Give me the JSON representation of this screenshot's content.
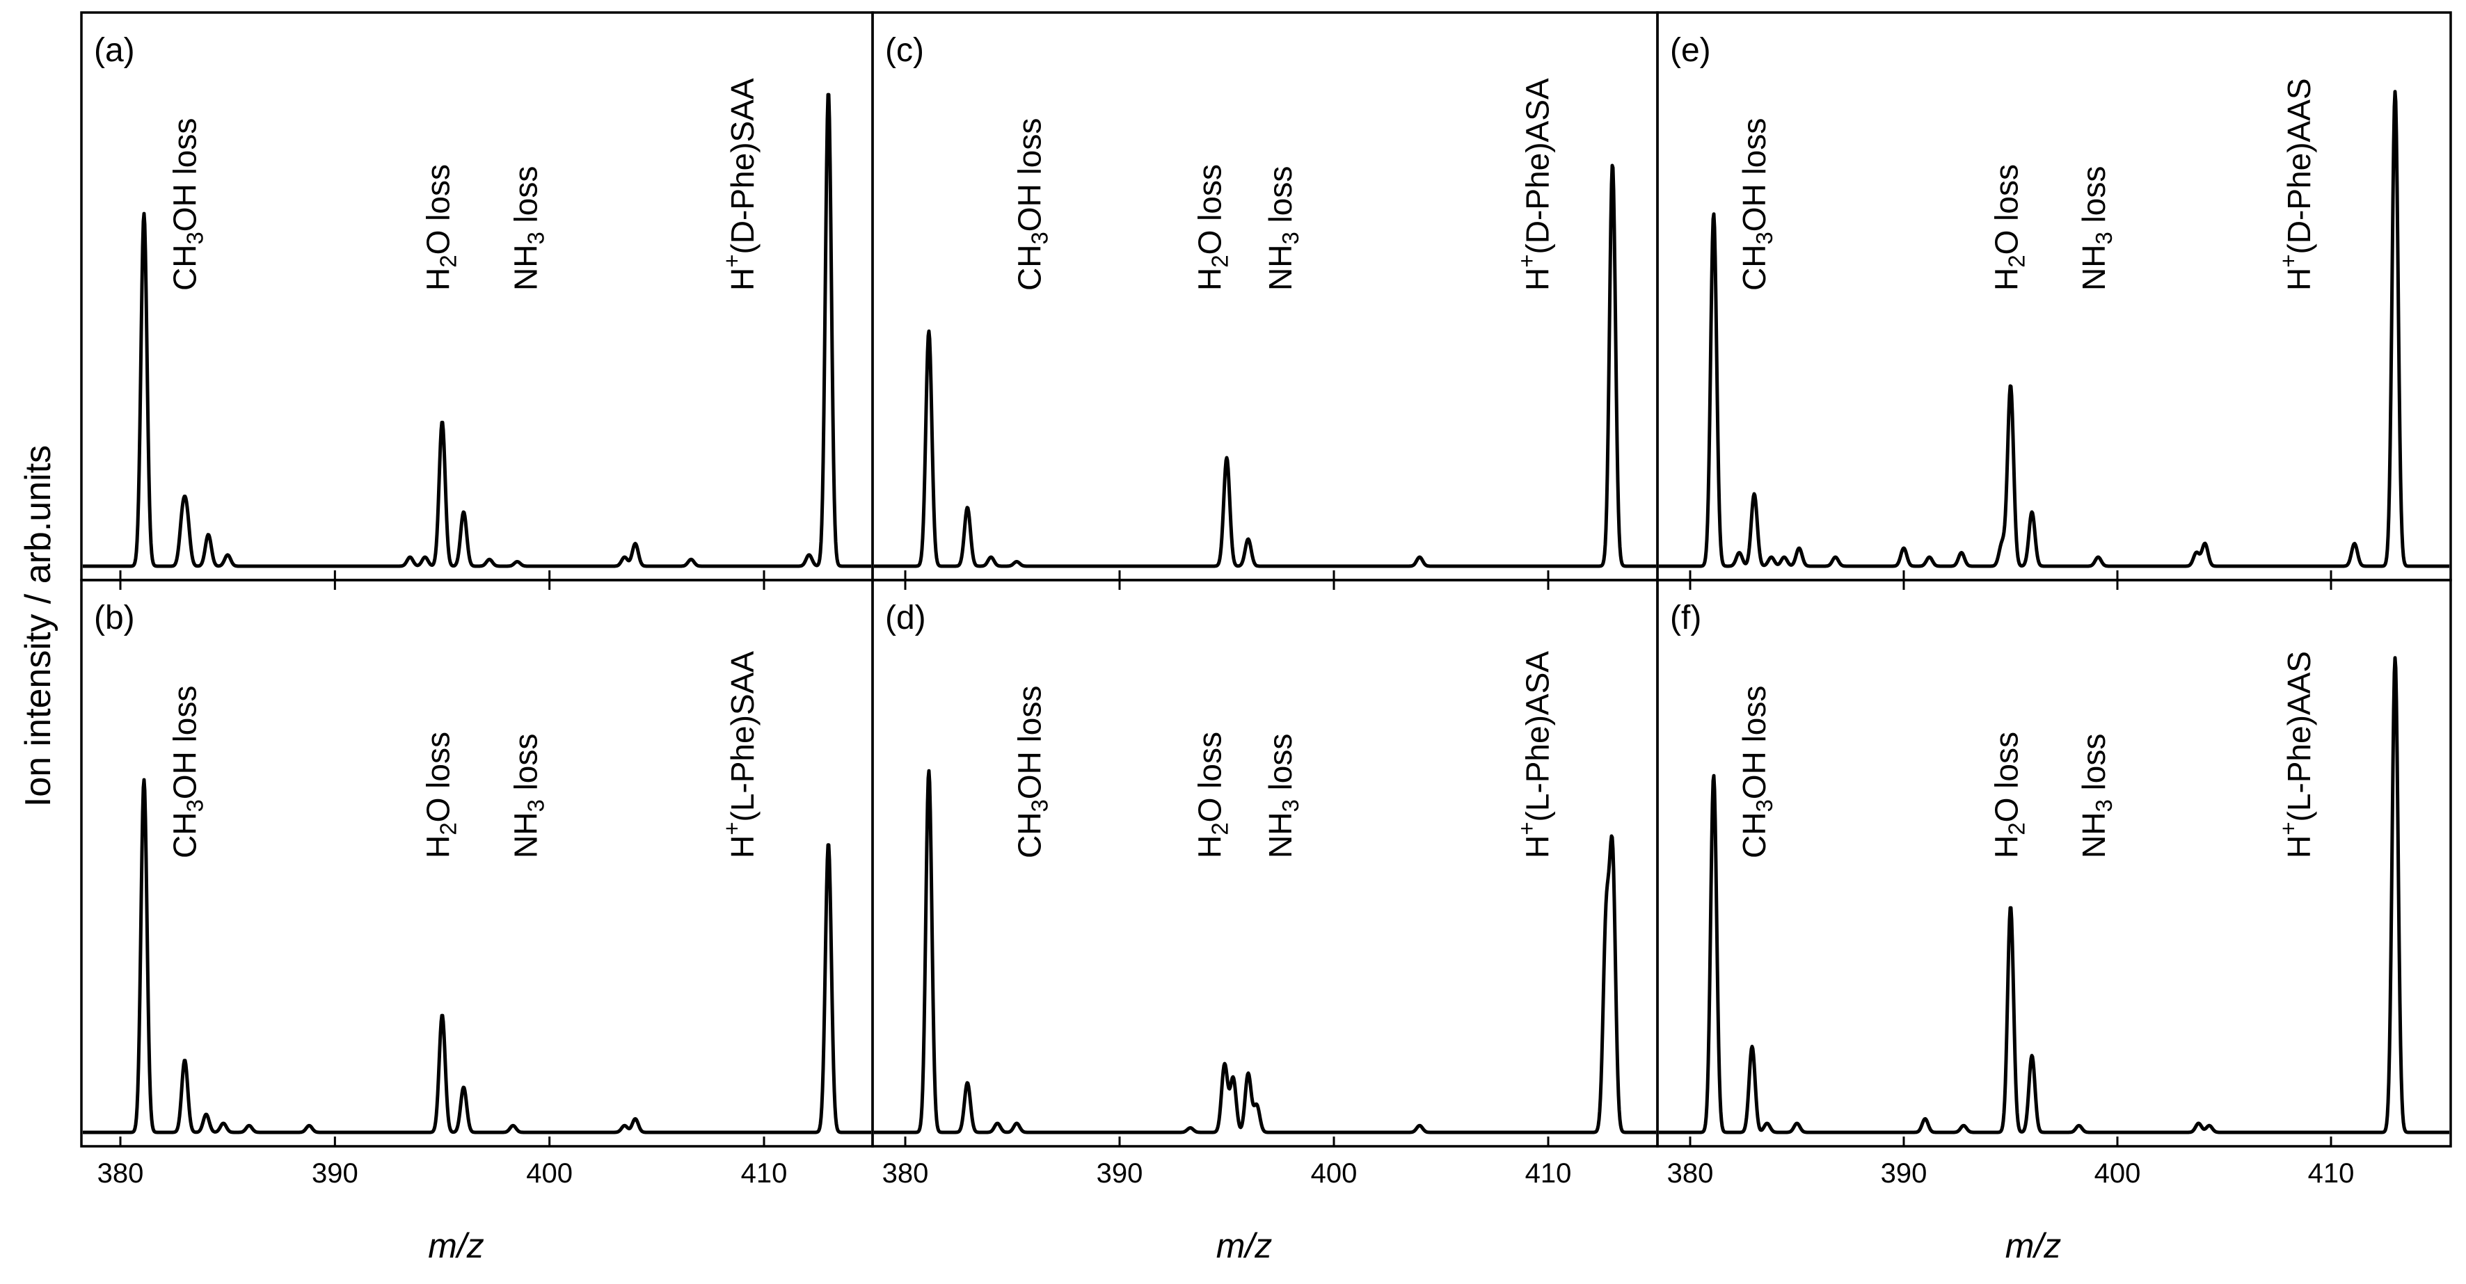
{
  "chart_data": {
    "type": "line",
    "ylabel": "Ion intensity / arb.units",
    "xlim": [
      379,
      414.5
    ],
    "ylim": [
      0,
      1
    ],
    "panels": [
      {
        "label": "(a)",
        "xlabel": "m/z",
        "xticks": [
          380,
          390,
          400,
          410
        ],
        "tick_labels": [
          "380",
          "390",
          "400",
          "410"
        ],
        "peaks": [
          {
            "x": 381.1,
            "y": 0.78
          },
          {
            "x": 382.9,
            "y": 0.1
          },
          {
            "x": 383.1,
            "y": 0.1
          },
          {
            "x": 384.1,
            "y": 0.07
          },
          {
            "x": 385.0,
            "y": 0.025
          },
          {
            "x": 393.5,
            "y": 0.02
          },
          {
            "x": 394.2,
            "y": 0.02
          },
          {
            "x": 395.0,
            "y": 0.32
          },
          {
            "x": 396.0,
            "y": 0.12
          },
          {
            "x": 397.2,
            "y": 0.015
          },
          {
            "x": 398.5,
            "y": 0.01
          },
          {
            "x": 403.5,
            "y": 0.02
          },
          {
            "x": 404.0,
            "y": 0.05
          },
          {
            "x": 406.6,
            "y": 0.015
          },
          {
            "x": 412.1,
            "y": 0.025
          },
          {
            "x": 413.0,
            "y": 1.05
          }
        ],
        "annotations": [
          {
            "base": "CH",
            "sub1": "3",
            "rest": "OH loss",
            "x": 383.0
          },
          {
            "base": "H",
            "sub1": "2",
            "rest": "O loss",
            "x": 394.8
          },
          {
            "base": "NH",
            "sub1": "3",
            "rest": " loss",
            "x": 398.9
          },
          {
            "base": "H",
            "sup": "+",
            "rest": "(D-Phe)SAA",
            "x": 409.0
          }
        ]
      },
      {
        "label": "(b)",
        "xlabel": "m/z",
        "xticks": [
          380,
          390,
          400,
          410
        ],
        "tick_labels": [
          "380",
          "390",
          "400",
          "410"
        ],
        "peaks": [
          {
            "x": 381.1,
            "y": 0.78
          },
          {
            "x": 383.0,
            "y": 0.16
          },
          {
            "x": 384.0,
            "y": 0.04
          },
          {
            "x": 384.8,
            "y": 0.02
          },
          {
            "x": 386.0,
            "y": 0.015
          },
          {
            "x": 388.8,
            "y": 0.015
          },
          {
            "x": 395.0,
            "y": 0.26
          },
          {
            "x": 396.0,
            "y": 0.1
          },
          {
            "x": 398.3,
            "y": 0.015
          },
          {
            "x": 403.5,
            "y": 0.015
          },
          {
            "x": 404.0,
            "y": 0.03
          },
          {
            "x": 413.0,
            "y": 0.64
          }
        ],
        "annotations": [
          {
            "base": "CH",
            "sub1": "3",
            "rest": "OH loss",
            "x": 383.0
          },
          {
            "base": "H",
            "sub1": "2",
            "rest": "O loss",
            "x": 394.8
          },
          {
            "base": "NH",
            "sub1": "3",
            "rest": " loss",
            "x": 398.9
          },
          {
            "base": "H",
            "sup": "+",
            "rest": "(L-Phe)SAA",
            "x": 409.0
          }
        ]
      },
      {
        "label": "(c)",
        "xlabel": "m/z",
        "xticks": [
          380,
          390,
          400,
          410
        ],
        "tick_labels": [
          "380",
          "390",
          "400",
          "410"
        ],
        "peaks": [
          {
            "x": 381.1,
            "y": 0.52
          },
          {
            "x": 382.9,
            "y": 0.13
          },
          {
            "x": 384.0,
            "y": 0.02
          },
          {
            "x": 385.2,
            "y": 0.01
          },
          {
            "x": 395.0,
            "y": 0.24
          },
          {
            "x": 396.0,
            "y": 0.06
          },
          {
            "x": 404.0,
            "y": 0.02
          },
          {
            "x": 413.0,
            "y": 0.89
          }
        ],
        "annotations": [
          {
            "base": "CH",
            "sub1": "3",
            "rest": "OH loss",
            "x": 385.8
          },
          {
            "base": "H",
            "sub1": "2",
            "rest": "O loss",
            "x": 394.2
          },
          {
            "base": "NH",
            "sub1": "3",
            "rest": " loss",
            "x": 397.5
          },
          {
            "base": "H",
            "sup": "+",
            "rest": "(D-Phe)ASA",
            "x": 409.5
          }
        ]
      },
      {
        "label": "(d)",
        "xlabel": "m/z",
        "xticks": [
          380,
          390,
          400,
          410
        ],
        "tick_labels": [
          "380",
          "390",
          "400",
          "410"
        ],
        "peaks": [
          {
            "x": 381.1,
            "y": 0.8
          },
          {
            "x": 382.9,
            "y": 0.11
          },
          {
            "x": 384.3,
            "y": 0.02
          },
          {
            "x": 385.2,
            "y": 0.02
          },
          {
            "x": 393.3,
            "y": 0.01
          },
          {
            "x": 394.9,
            "y": 0.15
          },
          {
            "x": 395.3,
            "y": 0.12
          },
          {
            "x": 396.0,
            "y": 0.13
          },
          {
            "x": 396.4,
            "y": 0.06
          },
          {
            "x": 404.0,
            "y": 0.015
          },
          {
            "x": 412.7,
            "y": 0.45
          },
          {
            "x": 413.0,
            "y": 0.6
          }
        ],
        "annotations": [
          {
            "base": "CH",
            "sub1": "3",
            "rest": "OH loss",
            "x": 385.8
          },
          {
            "base": "H",
            "sub1": "2",
            "rest": "O loss",
            "x": 394.2
          },
          {
            "base": "NH",
            "sub1": "3",
            "rest": " loss",
            "x": 397.5
          },
          {
            "base": "H",
            "sup": "+",
            "rest": "(L-Phe)ASA",
            "x": 409.5
          }
        ]
      },
      {
        "label": "(e)",
        "xlabel": "m/z",
        "xticks": [
          380,
          390,
          400,
          410
        ],
        "tick_labels": [
          "380",
          "390",
          "400",
          "410"
        ],
        "peaks": [
          {
            "x": 381.1,
            "y": 0.78
          },
          {
            "x": 382.3,
            "y": 0.03
          },
          {
            "x": 383.0,
            "y": 0.16
          },
          {
            "x": 383.8,
            "y": 0.02
          },
          {
            "x": 384.4,
            "y": 0.02
          },
          {
            "x": 385.1,
            "y": 0.04
          },
          {
            "x": 386.8,
            "y": 0.02
          },
          {
            "x": 390.0,
            "y": 0.04
          },
          {
            "x": 391.2,
            "y": 0.02
          },
          {
            "x": 392.7,
            "y": 0.03
          },
          {
            "x": 394.6,
            "y": 0.05
          },
          {
            "x": 395.0,
            "y": 0.4
          },
          {
            "x": 396.0,
            "y": 0.12
          },
          {
            "x": 399.1,
            "y": 0.02
          },
          {
            "x": 403.7,
            "y": 0.03
          },
          {
            "x": 404.1,
            "y": 0.05
          },
          {
            "x": 411.1,
            "y": 0.05
          },
          {
            "x": 413.0,
            "y": 1.05
          }
        ],
        "annotations": [
          {
            "base": "CH",
            "sub1": "3",
            "rest": "OH loss",
            "x": 383.0
          },
          {
            "base": "H",
            "sub1": "2",
            "rest": "O loss",
            "x": 394.8
          },
          {
            "base": "NH",
            "sub1": "3",
            "rest": " loss",
            "x": 398.9
          },
          {
            "base": "H",
            "sup": "+",
            "rest": "(D-Phe)AAS",
            "x": 408.5
          }
        ]
      },
      {
        "label": "(f)",
        "xlabel": "m/z",
        "xticks": [
          380,
          390,
          400,
          410
        ],
        "tick_labels": [
          "380",
          "390",
          "400",
          "410"
        ],
        "peaks": [
          {
            "x": 381.1,
            "y": 0.79
          },
          {
            "x": 382.9,
            "y": 0.19
          },
          {
            "x": 383.6,
            "y": 0.02
          },
          {
            "x": 385.0,
            "y": 0.02
          },
          {
            "x": 391.0,
            "y": 0.03
          },
          {
            "x": 392.8,
            "y": 0.015
          },
          {
            "x": 395.0,
            "y": 0.5
          },
          {
            "x": 396.0,
            "y": 0.17
          },
          {
            "x": 398.2,
            "y": 0.015
          },
          {
            "x": 403.8,
            "y": 0.02
          },
          {
            "x": 404.3,
            "y": 0.015
          },
          {
            "x": 413.0,
            "y": 1.05
          }
        ],
        "annotations": [
          {
            "base": "CH",
            "sub1": "3",
            "rest": "OH loss",
            "x": 383.0
          },
          {
            "base": "H",
            "sub1": "2",
            "rest": "O loss",
            "x": 394.8
          },
          {
            "base": "NH",
            "sub1": "3",
            "rest": " loss",
            "x": 398.9
          },
          {
            "base": "H",
            "sup": "+",
            "rest": "(L-Phe)AAS",
            "x": 408.5
          }
        ]
      }
    ]
  }
}
